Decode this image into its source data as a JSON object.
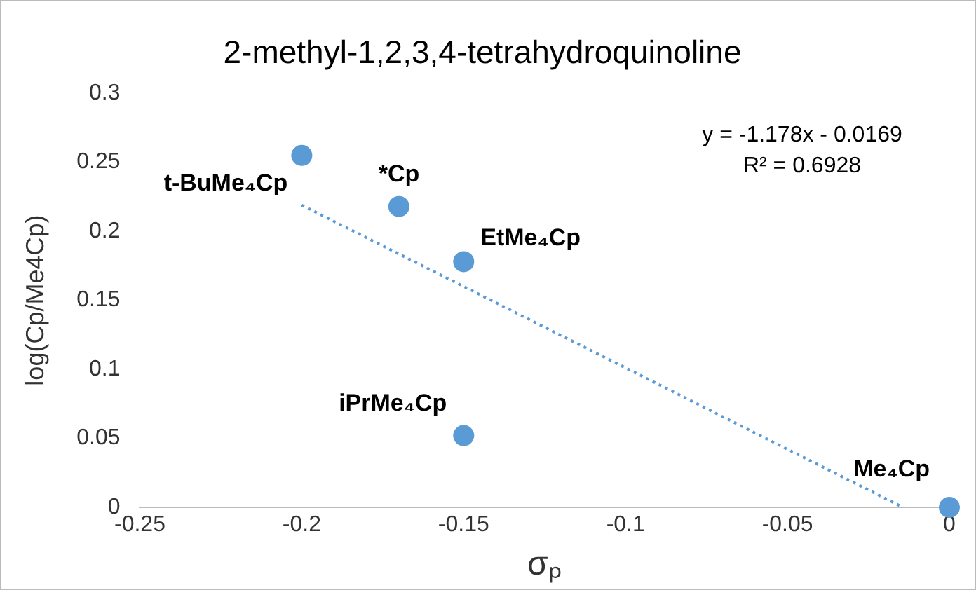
{
  "chart_data": {
    "type": "scatter",
    "title": "2-methyl-1,2,3,4-tetrahydroquinoline",
    "xlabel": "σₚ",
    "ylabel": "log(Cp/Me4Cp)",
    "x": [
      -0.2,
      -0.17,
      -0.15,
      -0.15,
      0
    ],
    "series": [
      {
        "color": "#5b9bd5",
        "values": [
          0.255,
          0.218,
          0.178,
          0.052,
          0
        ],
        "marker": "circle"
      },
      {
        "type": "line",
        "color": "#5b9bd5",
        "x": [
          -0.2,
          -0.0143
        ],
        "values": [
          0.219,
          0
        ],
        "line_style": "dotted",
        "marker": "none"
      }
    ],
    "xlim": [
      -0.25,
      0
    ],
    "xticks": [
      -0.25,
      -0.2,
      -0.15,
      -0.1,
      -0.05,
      0
    ],
    "ylim": [
      0,
      0.3
    ],
    "yticks": [
      0,
      0.05,
      0.1,
      0.15,
      0.2,
      0.25,
      0.3
    ],
    "grid": false,
    "legend": false,
    "annotations": [
      {
        "text": "t-BuMe₄Cp",
        "x": -0.2,
        "y": 0.255
      },
      {
        "text": "*Cp",
        "x": -0.17,
        "y": 0.218
      },
      {
        "text": "EtMe₄Cp",
        "x": -0.15,
        "y": 0.178
      },
      {
        "text": "iPrMe₄Cp",
        "x": -0.15,
        "y": 0.052
      },
      {
        "text": "Me₄Cp",
        "x": 0,
        "y": 0
      },
      "y = -1.178x - 0.0169",
      "R² = 0.6928"
    ]
  }
}
